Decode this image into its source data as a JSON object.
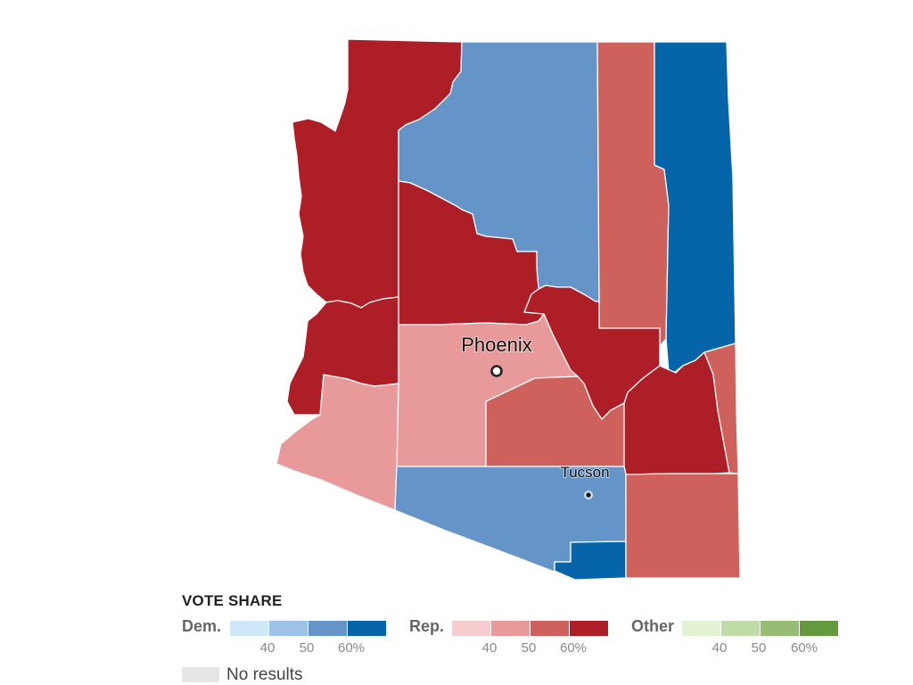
{
  "map": {
    "region": "Arizona",
    "cities": [
      {
        "name": "Phoenix",
        "size": "big"
      },
      {
        "name": "Tucson",
        "size": "small"
      }
    ],
    "counties": [
      {
        "name": "Mohave",
        "bucket": "rep-4"
      },
      {
        "name": "Coconino",
        "bucket": "dem-3"
      },
      {
        "name": "Navajo",
        "bucket": "rep-3"
      },
      {
        "name": "Apache",
        "bucket": "dem-4"
      },
      {
        "name": "Yavapai",
        "bucket": "rep-4"
      },
      {
        "name": "La Paz",
        "bucket": "rep-4"
      },
      {
        "name": "Gila",
        "bucket": "rep-4"
      },
      {
        "name": "Maricopa",
        "bucket": "rep-2"
      },
      {
        "name": "Yuma",
        "bucket": "rep-2"
      },
      {
        "name": "Pinal",
        "bucket": "rep-3"
      },
      {
        "name": "Graham",
        "bucket": "rep-4"
      },
      {
        "name": "Greenlee",
        "bucket": "rep-3"
      },
      {
        "name": "Pima",
        "bucket": "dem-3"
      },
      {
        "name": "Santa Cruz",
        "bucket": "dem-4"
      },
      {
        "name": "Cochise",
        "bucket": "rep-3"
      }
    ]
  },
  "legend": {
    "title": "VOTE SHARE",
    "groups": [
      {
        "label": "Dem.",
        "colors": [
          "#cfe8f8",
          "#9ec1e6",
          "#6594c8",
          "#0565a8"
        ],
        "ticks": [
          "40",
          "50",
          "60%"
        ]
      },
      {
        "label": "Rep.",
        "colors": [
          "#f7ccce",
          "#e8999a",
          "#cf615c",
          "#ad1e27"
        ],
        "ticks": [
          "40",
          "50",
          "60%"
        ]
      },
      {
        "label": "Other",
        "colors": [
          "#e3f3d3",
          "#bfdca6",
          "#96bd73",
          "#65993e"
        ],
        "ticks": [
          "40",
          "50",
          "60%"
        ]
      }
    ],
    "no_results_label": "No results",
    "no_results_color": "#e6e6e6"
  }
}
